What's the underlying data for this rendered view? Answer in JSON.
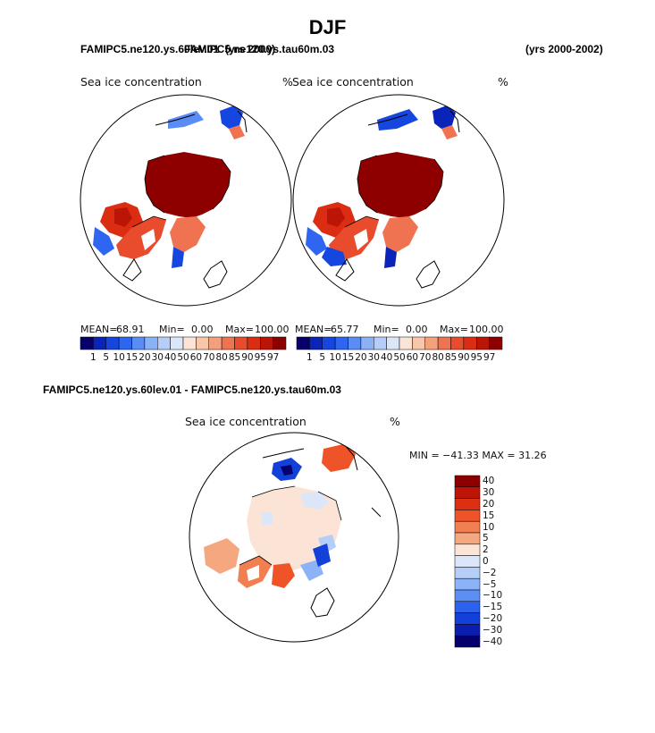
{
  "page_title": "DJF",
  "colors": {
    "land_outline": "#000000",
    "conc_scale": [
      "#08006a",
      "#0a23b8",
      "#1546e0",
      "#2e66f2",
      "#5a8cf6",
      "#8ab0f8",
      "#b5cdf8",
      "#dbe7f8",
      "#fbe4d6",
      "#f8c7a9",
      "#f4a07c",
      "#ef7350",
      "#e84c2c",
      "#db2d12",
      "#bb1508",
      "#8e0000"
    ],
    "diff_scale": [
      "#8e0000",
      "#bd1508",
      "#dd3012",
      "#ee5428",
      "#f17f52",
      "#f5a77f",
      "#fbe4d6",
      "#dbe7f8",
      "#b4cef8",
      "#8cb2f8",
      "#5c8ef4",
      "#2c62ee",
      "#1340d8",
      "#0a1fb0",
      "#06006e"
    ]
  },
  "top_left_panel": {
    "run_header": "FAMIPC5.ne120.ys.60lev.01",
    "years": "(yrs 2000)",
    "variable": "Sea ice concentration",
    "units": "%",
    "mean_label": "MEAN=",
    "mean": "68.91",
    "min_label": "Min=",
    "min": "0.00",
    "max_label": "Max=",
    "max": "100.00",
    "colorbar_ticks": [
      "1",
      "5",
      "10",
      "15",
      "20",
      "30",
      "40",
      "50",
      "60",
      "70",
      "80",
      "85",
      "90",
      "95",
      "97"
    ]
  },
  "top_right_panel": {
    "run_header": "FAMIPC5.ne120.ys.tau60m.03",
    "years": "(yrs 2000-2002)",
    "variable": "Sea ice concentration",
    "units": "%",
    "mean_label": "MEAN=",
    "mean": "65.77",
    "min_label": "Min=",
    "min": "0.00",
    "max_label": "Max=",
    "max": "100.00",
    "colorbar_ticks": [
      "1",
      "5",
      "10",
      "15",
      "20",
      "30",
      "40",
      "50",
      "60",
      "70",
      "80",
      "85",
      "90",
      "95",
      "97"
    ]
  },
  "diff_panel": {
    "run_header": "FAMIPC5.ne120.ys.60lev.01 - FAMIPC5.ne120.ys.tau60m.03",
    "variable": "Sea ice concentration",
    "units": "%",
    "minmax_text": "MIN = −41.33 MAX =  31.26",
    "colorbar_ticks": [
      "40",
      "30",
      "20",
      "15",
      "10",
      "5",
      "2",
      "0",
      "−2",
      "−5",
      "−10",
      "−15",
      "−20",
      "−30",
      "−40"
    ]
  }
}
